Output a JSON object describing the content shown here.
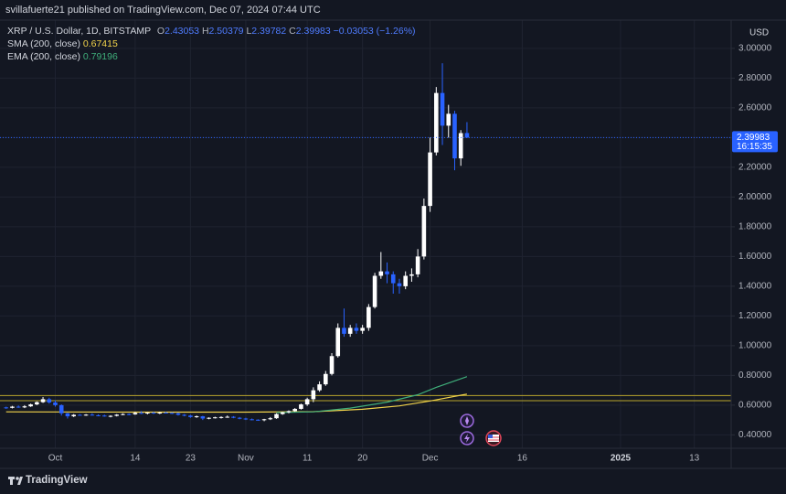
{
  "header": "svillafuerte21 published on TradingView.com, Dec 07, 2024 07:44 UTC",
  "footer": "TradingView",
  "chart_data": {
    "type": "candlestick",
    "symbol": "XRP / U.S. Dollar, 1D, BITSTAMP",
    "ohlc_labels": [
      "O",
      "H",
      "L",
      "C"
    ],
    "change_label": "−0.03053 (−1.26%)",
    "currency_label": "USD",
    "countdown": "16:15:35",
    "up_color": "#ffffff",
    "down_color": "#2962ff",
    "x": [
      "2024-09-23",
      "2024-09-24",
      "2024-09-25",
      "2024-09-26",
      "2024-09-27",
      "2024-09-28",
      "2024-09-29",
      "2024-09-30",
      "2024-10-01",
      "2024-10-02",
      "2024-10-03",
      "2024-10-04",
      "2024-10-05",
      "2024-10-06",
      "2024-10-07",
      "2024-10-08",
      "2024-10-09",
      "2024-10-10",
      "2024-10-11",
      "2024-10-12",
      "2024-10-13",
      "2024-10-14",
      "2024-10-15",
      "2024-10-16",
      "2024-10-17",
      "2024-10-18",
      "2024-10-19",
      "2024-10-20",
      "2024-10-21",
      "2024-10-22",
      "2024-10-23",
      "2024-10-24",
      "2024-10-25",
      "2024-10-26",
      "2024-10-27",
      "2024-10-28",
      "2024-10-29",
      "2024-10-30",
      "2024-10-31",
      "2024-11-01",
      "2024-11-02",
      "2024-11-03",
      "2024-11-04",
      "2024-11-05",
      "2024-11-06",
      "2024-11-07",
      "2024-11-08",
      "2024-11-09",
      "2024-11-10",
      "2024-11-11",
      "2024-11-12",
      "2024-11-13",
      "2024-11-14",
      "2024-11-15",
      "2024-11-16",
      "2024-11-17",
      "2024-11-18",
      "2024-11-19",
      "2024-11-20",
      "2024-11-21",
      "2024-11-22",
      "2024-11-23",
      "2024-11-24",
      "2024-11-25",
      "2024-11-26",
      "2024-11-27",
      "2024-11-28",
      "2024-11-29",
      "2024-11-30",
      "2024-12-01",
      "2024-12-02",
      "2024-12-03",
      "2024-12-04",
      "2024-12-05",
      "2024-12-06",
      "2024-12-07"
    ],
    "open": [
      0.585,
      0.582,
      0.59,
      0.585,
      0.592,
      0.605,
      0.62,
      0.64,
      0.618,
      0.6,
      0.545,
      0.525,
      0.535,
      0.533,
      0.536,
      0.532,
      0.53,
      0.526,
      0.528,
      0.536,
      0.54,
      0.538,
      0.548,
      0.545,
      0.55,
      0.545,
      0.55,
      0.548,
      0.545,
      0.535,
      0.53,
      0.52,
      0.525,
      0.51,
      0.515,
      0.518,
      0.52,
      0.522,
      0.515,
      0.51,
      0.505,
      0.502,
      0.5,
      0.505,
      0.512,
      0.54,
      0.552,
      0.56,
      0.575,
      0.605,
      0.64,
      0.7,
      0.74,
      0.81,
      0.93,
      1.12,
      1.08,
      1.12,
      1.1,
      1.12,
      1.26,
      1.47,
      1.5,
      1.48,
      1.42,
      1.4,
      1.47,
      1.48,
      1.6,
      1.94,
      2.3,
      2.7,
      2.48,
      2.56,
      2.26,
      2.43053
    ],
    "high": [
      0.59,
      0.595,
      0.598,
      0.6,
      0.61,
      0.625,
      0.655,
      0.65,
      0.632,
      0.605,
      0.548,
      0.54,
      0.54,
      0.54,
      0.545,
      0.538,
      0.536,
      0.532,
      0.54,
      0.545,
      0.545,
      0.555,
      0.56,
      0.552,
      0.555,
      0.555,
      0.555,
      0.552,
      0.55,
      0.54,
      0.535,
      0.53,
      0.528,
      0.518,
      0.522,
      0.525,
      0.53,
      0.526,
      0.52,
      0.515,
      0.51,
      0.505,
      0.508,
      0.52,
      0.545,
      0.555,
      0.565,
      0.58,
      0.61,
      0.65,
      0.72,
      0.76,
      0.83,
      0.95,
      1.15,
      1.25,
      1.14,
      1.15,
      1.14,
      1.28,
      1.49,
      1.63,
      1.56,
      1.5,
      1.45,
      1.5,
      1.52,
      1.65,
      1.99,
      2.4,
      2.74,
      2.9,
      2.62,
      2.58,
      2.45,
      2.50379
    ],
    "low": [
      0.575,
      0.578,
      0.582,
      0.58,
      0.588,
      0.6,
      0.615,
      0.61,
      0.59,
      0.53,
      0.51,
      0.52,
      0.53,
      0.528,
      0.53,
      0.525,
      0.522,
      0.518,
      0.524,
      0.532,
      0.532,
      0.535,
      0.54,
      0.538,
      0.54,
      0.54,
      0.545,
      0.54,
      0.53,
      0.525,
      0.515,
      0.515,
      0.5,
      0.505,
      0.51,
      0.51,
      0.515,
      0.512,
      0.505,
      0.5,
      0.498,
      0.495,
      0.492,
      0.5,
      0.508,
      0.535,
      0.545,
      0.555,
      0.57,
      0.595,
      0.62,
      0.69,
      0.73,
      0.8,
      0.92,
      1.06,
      1.06,
      1.08,
      1.08,
      1.1,
      1.25,
      1.45,
      1.42,
      1.35,
      1.35,
      1.38,
      1.43,
      1.46,
      1.58,
      1.9,
      2.28,
      2.35,
      2.4,
      2.18,
      2.21,
      2.39782
    ],
    "close": [
      0.582,
      0.59,
      0.585,
      0.592,
      0.605,
      0.62,
      0.64,
      0.618,
      0.6,
      0.545,
      0.525,
      0.535,
      0.533,
      0.536,
      0.532,
      0.53,
      0.526,
      0.528,
      0.536,
      0.54,
      0.538,
      0.548,
      0.545,
      0.55,
      0.545,
      0.55,
      0.548,
      0.545,
      0.535,
      0.53,
      0.52,
      0.525,
      0.51,
      0.515,
      0.518,
      0.52,
      0.522,
      0.515,
      0.51,
      0.505,
      0.502,
      0.5,
      0.505,
      0.512,
      0.54,
      0.552,
      0.56,
      0.575,
      0.605,
      0.64,
      0.7,
      0.74,
      0.81,
      0.93,
      1.12,
      1.08,
      1.12,
      1.1,
      1.12,
      1.26,
      1.47,
      1.5,
      1.48,
      1.42,
      1.4,
      1.47,
      1.48,
      1.6,
      1.94,
      2.3,
      2.7,
      2.48,
      2.56,
      2.26,
      2.43,
      2.39983
    ],
    "indicators": [
      {
        "name": "SMA (200, close)",
        "color": "#f2d34b",
        "x": [
          "2024-09-23",
          "2024-10-15",
          "2024-11-01",
          "2024-11-12",
          "2024-11-20",
          "2024-11-26",
          "2024-12-01",
          "2024-12-07"
        ],
        "values": [
          0.555,
          0.553,
          0.553,
          0.556,
          0.572,
          0.595,
          0.628,
          0.67415
        ]
      },
      {
        "name": "EMA (200, close)",
        "color": "#3fae7a",
        "x": [
          "2024-11-06",
          "2024-11-12",
          "2024-11-18",
          "2024-11-24",
          "2024-11-29",
          "2024-12-02",
          "2024-12-07"
        ],
        "values": [
          0.55,
          0.555,
          0.58,
          0.62,
          0.67,
          0.72,
          0.79196
        ]
      }
    ],
    "levels": [
      0.665,
      0.63
    ],
    "level_color": "#b8a52c",
    "ylim": [
      0.31,
      3.19
    ],
    "yticks": [
      {
        "value": 0.4,
        "label": "0.40000"
      },
      {
        "value": 0.6,
        "label": "0.60000"
      },
      {
        "value": 0.8,
        "label": "0.80000"
      },
      {
        "value": 1.0,
        "label": "1.00000"
      },
      {
        "value": 1.2,
        "label": "1.20000"
      },
      {
        "value": 1.4,
        "label": "1.40000"
      },
      {
        "value": 1.6,
        "label": "1.60000"
      },
      {
        "value": 1.8,
        "label": "1.80000"
      },
      {
        "value": 2.0,
        "label": "2.00000"
      },
      {
        "value": 2.2,
        "label": "2.20000"
      },
      {
        "value": 2.4,
        "label": "2.40000"
      },
      {
        "value": 2.6,
        "label": "2.60000"
      },
      {
        "value": 2.8,
        "label": "2.80000"
      },
      {
        "value": 3.0,
        "label": "3.00000"
      }
    ],
    "xlim": [
      "2024-09-22",
      "2025-01-19"
    ],
    "xticks": [
      {
        "value": "2024-10-01",
        "label": "Oct"
      },
      {
        "value": "2024-10-14",
        "label": "14"
      },
      {
        "value": "2024-10-23",
        "label": "23"
      },
      {
        "value": "2024-11-01",
        "label": "Nov"
      },
      {
        "value": "2024-11-11",
        "label": "11"
      },
      {
        "value": "2024-11-20",
        "label": "20"
      },
      {
        "value": "2024-12-01",
        "label": "Dec"
      },
      {
        "value": "2024-12-16",
        "label": "16"
      },
      {
        "value": "2025-01-01",
        "label": "2025"
      },
      {
        "value": "2025-01-13",
        "label": "13"
      }
    ],
    "grid": true
  }
}
